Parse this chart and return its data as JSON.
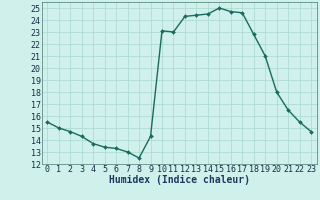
{
  "x": [
    0,
    1,
    2,
    3,
    4,
    5,
    6,
    7,
    8,
    9,
    10,
    11,
    12,
    13,
    14,
    15,
    16,
    17,
    18,
    19,
    20,
    21,
    22,
    23
  ],
  "y": [
    15.5,
    15.0,
    14.7,
    14.3,
    13.7,
    13.4,
    13.3,
    13.0,
    12.5,
    14.3,
    23.1,
    23.0,
    24.3,
    24.4,
    24.5,
    25.0,
    24.7,
    24.6,
    22.8,
    21.0,
    18.0,
    16.5,
    15.5,
    14.7
  ],
  "line_color": "#1a6b5e",
  "marker": "D",
  "markersize": 2.0,
  "linewidth": 1.0,
  "bg_color": "#cff0eb",
  "grid_color": "#a8d8d0",
  "xlabel": "Humidex (Indice chaleur)",
  "xlabel_fontsize": 7,
  "xlabel_color": "#1a3a5e",
  "tick_fontsize": 6,
  "tick_color": "#1a2a4a",
  "xlim": [
    -0.5,
    23.5
  ],
  "ylim": [
    12,
    25.5
  ],
  "yticks": [
    12,
    13,
    14,
    15,
    16,
    17,
    18,
    19,
    20,
    21,
    22,
    23,
    24,
    25
  ],
  "xticks": [
    0,
    1,
    2,
    3,
    4,
    5,
    6,
    7,
    8,
    9,
    10,
    11,
    12,
    13,
    14,
    15,
    16,
    17,
    18,
    19,
    20,
    21,
    22,
    23
  ]
}
